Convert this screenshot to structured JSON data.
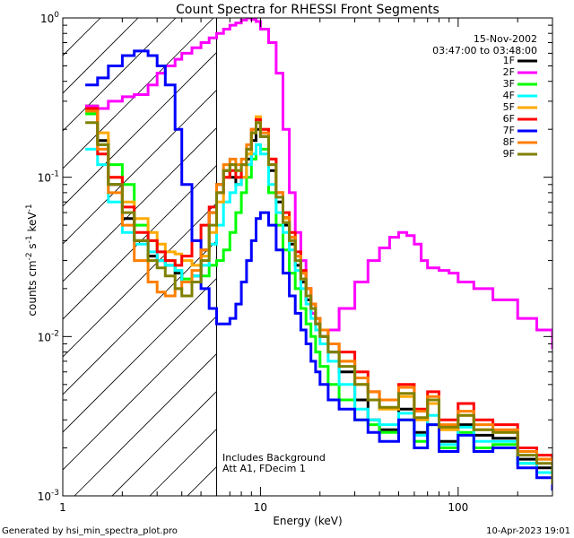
{
  "chart_data": {
    "type": "line",
    "title": "Count Spectra for RHESSI Front Segments",
    "xlabel": "Energy (keV)",
    "ylabel_parts": [
      "counts cm",
      "-2",
      " s",
      "-1",
      " keV",
      "-1"
    ],
    "xscale": "log",
    "yscale": "log",
    "xlim": [
      1,
      300
    ],
    "ylim": [
      0.001,
      1
    ],
    "x_tick_labels": [
      "1",
      "10",
      "100"
    ],
    "y_tick_labels": [
      {
        "base": "10",
        "exp": "0",
        "value": 1
      },
      {
        "base": "10",
        "exp": "-1",
        "value": 0.1
      },
      {
        "base": "10",
        "exp": "-2",
        "value": 0.01
      },
      {
        "base": "10",
        "exp": "-3",
        "value": 0.001
      }
    ],
    "date": "15-Nov-2002",
    "time_range": "03:47:00 to 03:48:00",
    "annotations": [
      "Includes Background",
      "Att A1, FDecim 1"
    ],
    "hatched_region_max_kev": 6,
    "legend_position": "top-right",
    "series": [
      {
        "name": "1F",
        "color": "#000000",
        "x": [
          1.3,
          1.5,
          1.7,
          2,
          2.3,
          2.7,
          3,
          3.3,
          3.7,
          4,
          4.5,
          5,
          5.5,
          6,
          6.5,
          7,
          7.5,
          8,
          8.5,
          9,
          9.5,
          10,
          11,
          12,
          13,
          14,
          15,
          16,
          17,
          18,
          19,
          20,
          22,
          25,
          30,
          35,
          40,
          50,
          60,
          70,
          80,
          100,
          120,
          150,
          200,
          250,
          300
        ],
        "y": [
          0.28,
          0.17,
          0.09,
          0.055,
          0.04,
          0.032,
          0.03,
          0.028,
          0.025,
          0.022,
          0.024,
          0.035,
          0.06,
          0.09,
          0.11,
          0.1,
          0.09,
          0.1,
          0.13,
          0.17,
          0.2,
          0.18,
          0.11,
          0.07,
          0.05,
          0.038,
          0.028,
          0.022,
          0.017,
          0.014,
          0.012,
          0.01,
          0.008,
          0.006,
          0.004,
          0.003,
          0.0026,
          0.0035,
          0.0025,
          0.004,
          0.0022,
          0.0028,
          0.0024,
          0.0023,
          0.0017,
          0.0015,
          0.0012
        ]
      },
      {
        "name": "2F",
        "color": "#ff00ff",
        "x": [
          1.3,
          1.5,
          1.7,
          2,
          2.3,
          2.7,
          3,
          3.3,
          3.7,
          4,
          4.5,
          5,
          5.5,
          6,
          6.5,
          7,
          7.5,
          8,
          8.5,
          9,
          9.5,
          10,
          11,
          12,
          13,
          14,
          15,
          16,
          17,
          18,
          19,
          20,
          22,
          25,
          30,
          35,
          40,
          45,
          50,
          55,
          60,
          65,
          70,
          80,
          90,
          100,
          120,
          150,
          200,
          250,
          300
        ],
        "y": [
          0.28,
          0.27,
          0.3,
          0.32,
          0.33,
          0.38,
          0.45,
          0.5,
          0.55,
          0.6,
          0.65,
          0.7,
          0.75,
          0.8,
          0.85,
          0.9,
          0.93,
          0.97,
          1.0,
          0.98,
          0.95,
          0.85,
          0.7,
          0.45,
          0.2,
          0.08,
          0.045,
          0.03,
          0.02,
          0.014,
          0.012,
          0.011,
          0.011,
          0.015,
          0.022,
          0.03,
          0.036,
          0.042,
          0.045,
          0.043,
          0.038,
          0.03,
          0.027,
          0.026,
          0.025,
          0.022,
          0.02,
          0.017,
          0.013,
          0.011,
          0.0085
        ]
      },
      {
        "name": "3F",
        "color": "#00ff00",
        "x": [
          1.3,
          1.5,
          1.7,
          2,
          2.3,
          2.7,
          3,
          3.3,
          3.7,
          4,
          4.5,
          5,
          5.5,
          6,
          6.5,
          7,
          7.5,
          8,
          8.5,
          9,
          9.5,
          10,
          11,
          12,
          13,
          14,
          15,
          16,
          17,
          18,
          19,
          20,
          22,
          25,
          30,
          35,
          40,
          50,
          60,
          70,
          80,
          100,
          120,
          150,
          200,
          250,
          300
        ],
        "y": [
          0.25,
          0.16,
          0.12,
          0.09,
          0.05,
          0.04,
          0.034,
          0.03,
          0.026,
          0.023,
          0.022,
          0.024,
          0.028,
          0.03,
          0.035,
          0.045,
          0.06,
          0.08,
          0.1,
          0.13,
          0.16,
          0.15,
          0.08,
          0.05,
          0.035,
          0.025,
          0.02,
          0.015,
          0.012,
          0.01,
          0.008,
          0.0065,
          0.005,
          0.004,
          0.003,
          0.0028,
          0.0025,
          0.003,
          0.0022,
          0.0028,
          0.002,
          0.0025,
          0.002,
          0.0021,
          0.0016,
          0.0014,
          0.0011
        ]
      },
      {
        "name": "4F",
        "color": "#00ffff",
        "x": [
          1.3,
          1.5,
          1.7,
          2,
          2.3,
          2.7,
          3,
          3.3,
          3.7,
          4,
          4.5,
          5,
          5.5,
          6,
          6.5,
          7,
          7.5,
          8,
          8.5,
          9,
          9.5,
          10,
          11,
          12,
          13,
          14,
          15,
          16,
          17,
          18,
          19,
          20,
          22,
          25,
          30,
          35,
          40,
          50,
          60,
          70,
          80,
          100,
          120,
          150,
          200,
          250,
          300
        ],
        "y": [
          0.15,
          0.12,
          0.07,
          0.045,
          0.038,
          0.034,
          0.03,
          0.028,
          0.026,
          0.022,
          0.024,
          0.028,
          0.038,
          0.05,
          0.07,
          0.08,
          0.09,
          0.1,
          0.12,
          0.14,
          0.16,
          0.14,
          0.09,
          0.06,
          0.045,
          0.035,
          0.026,
          0.02,
          0.016,
          0.013,
          0.011,
          0.009,
          0.007,
          0.005,
          0.0035,
          0.003,
          0.0028,
          0.0033,
          0.0024,
          0.0032,
          0.0021,
          0.0027,
          0.0022,
          0.0022,
          0.0016,
          0.0014,
          0.0012
        ]
      },
      {
        "name": "5F",
        "color": "#ffaa00",
        "x": [
          1.3,
          1.5,
          1.7,
          2,
          2.3,
          2.7,
          3,
          3.3,
          3.7,
          4,
          4.5,
          5,
          5.5,
          6,
          6.5,
          7,
          7.5,
          8,
          8.5,
          9,
          9.5,
          10,
          11,
          12,
          13,
          14,
          15,
          16,
          17,
          18,
          19,
          20,
          22,
          25,
          30,
          35,
          40,
          50,
          60,
          70,
          80,
          100,
          120,
          150,
          200,
          250,
          300
        ],
        "y": [
          0.26,
          0.19,
          0.1,
          0.07,
          0.055,
          0.045,
          0.038,
          0.034,
          0.033,
          0.03,
          0.028,
          0.032,
          0.045,
          0.07,
          0.1,
          0.12,
          0.11,
          0.1,
          0.14,
          0.19,
          0.24,
          0.2,
          0.13,
          0.08,
          0.055,
          0.042,
          0.032,
          0.025,
          0.02,
          0.016,
          0.013,
          0.011,
          0.009,
          0.007,
          0.005,
          0.004,
          0.0035,
          0.0042,
          0.003,
          0.0038,
          0.0026,
          0.0032,
          0.0026,
          0.0025,
          0.0019,
          0.0017,
          0.0013
        ]
      },
      {
        "name": "6F",
        "color": "#ff0000",
        "x": [
          1.3,
          1.5,
          1.7,
          2,
          2.3,
          2.7,
          3,
          3.3,
          3.7,
          4,
          4.5,
          5,
          5.5,
          6,
          6.5,
          7,
          7.5,
          8,
          8.5,
          9,
          9.5,
          10,
          11,
          12,
          13,
          14,
          15,
          16,
          17,
          18,
          19,
          20,
          22,
          25,
          30,
          35,
          40,
          50,
          60,
          70,
          80,
          100,
          120,
          150,
          200,
          250,
          300
        ],
        "y": [
          0.27,
          0.14,
          0.1,
          0.065,
          0.045,
          0.04,
          0.034,
          0.03,
          0.028,
          0.032,
          0.04,
          0.05,
          0.065,
          0.08,
          0.1,
          0.11,
          0.1,
          0.12,
          0.15,
          0.2,
          0.23,
          0.2,
          0.13,
          0.08,
          0.06,
          0.045,
          0.034,
          0.026,
          0.02,
          0.016,
          0.013,
          0.011,
          0.009,
          0.008,
          0.006,
          0.0045,
          0.004,
          0.005,
          0.0035,
          0.0045,
          0.003,
          0.0038,
          0.003,
          0.0028,
          0.002,
          0.0018,
          0.0014
        ]
      },
      {
        "name": "7F",
        "color": "#0000ff",
        "x": [
          1.3,
          1.5,
          1.7,
          2,
          2.3,
          2.7,
          3,
          3.3,
          3.7,
          4,
          4.5,
          5,
          5.5,
          6,
          6.5,
          7,
          7.5,
          8,
          8.5,
          9,
          9.5,
          10,
          11,
          12,
          13,
          14,
          15,
          16,
          17,
          18,
          19,
          20,
          22,
          25,
          30,
          35,
          40,
          50,
          60,
          70,
          80,
          100,
          120,
          150,
          200,
          250,
          300
        ],
        "y": [
          0.38,
          0.42,
          0.5,
          0.58,
          0.62,
          0.58,
          0.5,
          0.38,
          0.2,
          0.09,
          0.04,
          0.02,
          0.015,
          0.012,
          0.012,
          0.013,
          0.016,
          0.022,
          0.03,
          0.04,
          0.055,
          0.06,
          0.05,
          0.035,
          0.025,
          0.018,
          0.014,
          0.011,
          0.009,
          0.007,
          0.006,
          0.005,
          0.004,
          0.0035,
          0.003,
          0.0025,
          0.0022,
          0.003,
          0.002,
          0.0028,
          0.0019,
          0.0024,
          0.0019,
          0.002,
          0.0015,
          0.0013,
          0.0011
        ]
      },
      {
        "name": "8F",
        "color": "#ff7f00",
        "x": [
          1.3,
          1.5,
          1.7,
          2,
          2.3,
          2.7,
          3,
          3.3,
          3.7,
          4,
          4.5,
          5,
          5.5,
          6,
          6.5,
          7,
          7.5,
          8,
          8.5,
          9,
          9.5,
          10,
          11,
          12,
          13,
          14,
          15,
          16,
          17,
          18,
          19,
          20,
          22,
          25,
          30,
          35,
          40,
          50,
          60,
          70,
          80,
          100,
          120,
          150,
          200,
          250,
          300
        ],
        "y": [
          0.26,
          0.15,
          0.08,
          0.05,
          0.03,
          0.022,
          0.019,
          0.018,
          0.02,
          0.022,
          0.026,
          0.035,
          0.06,
          0.09,
          0.12,
          0.13,
          0.12,
          0.13,
          0.16,
          0.2,
          0.22,
          0.19,
          0.12,
          0.08,
          0.056,
          0.042,
          0.032,
          0.025,
          0.02,
          0.016,
          0.013,
          0.011,
          0.009,
          0.007,
          0.0055,
          0.0045,
          0.004,
          0.0048,
          0.0034,
          0.0042,
          0.0028,
          0.0034,
          0.0028,
          0.0026,
          0.0019,
          0.0017,
          0.0013
        ]
      },
      {
        "name": "9F",
        "color": "#808000",
        "x": [
          1.3,
          1.5,
          1.7,
          2,
          2.3,
          2.7,
          3,
          3.3,
          3.7,
          4,
          4.5,
          5,
          5.5,
          6,
          6.5,
          7,
          7.5,
          8,
          8.5,
          9,
          9.5,
          10,
          11,
          12,
          13,
          14,
          15,
          16,
          17,
          18,
          19,
          20,
          22,
          25,
          30,
          35,
          40,
          50,
          60,
          70,
          80,
          100,
          120,
          150,
          200,
          250,
          300
        ],
        "y": [
          0.22,
          0.16,
          0.09,
          0.06,
          0.04,
          0.03,
          0.027,
          0.024,
          0.02,
          0.018,
          0.022,
          0.03,
          0.05,
          0.08,
          0.11,
          0.12,
          0.11,
          0.12,
          0.15,
          0.19,
          0.22,
          0.18,
          0.12,
          0.075,
          0.052,
          0.04,
          0.03,
          0.023,
          0.018,
          0.015,
          0.012,
          0.01,
          0.008,
          0.0065,
          0.005,
          0.004,
          0.0036,
          0.0044,
          0.0031,
          0.004,
          0.0027,
          0.0032,
          0.0026,
          0.0025,
          0.0018,
          0.0016,
          0.0012
        ]
      }
    ]
  },
  "footer": {
    "generated_by": "Generated by hsi_min_spectra_plot.pro",
    "generated_on": "10-Apr-2023 19:01"
  }
}
